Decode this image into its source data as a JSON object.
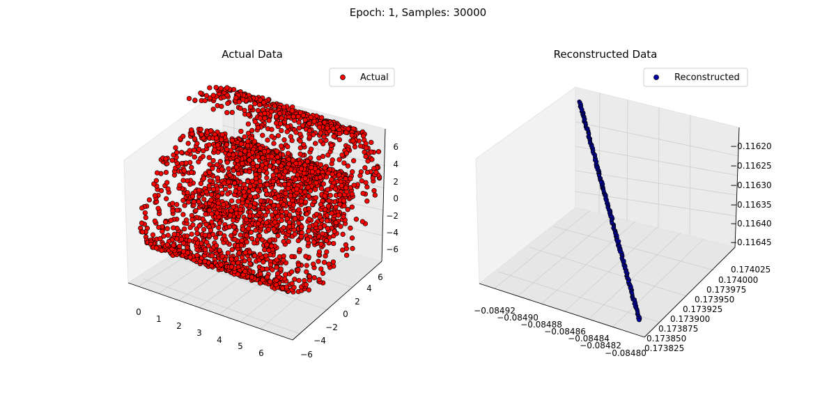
{
  "figure": {
    "suptitle": "Epoch: 1, Samples: 30000"
  },
  "chart_data": [
    {
      "type": "scatter",
      "title": "Actual Data",
      "legend": {
        "label": "Actual",
        "placement": "upper-right"
      },
      "marker_color": "#ff0000",
      "marker_edge": "#000000",
      "x_ticks": [
        "0",
        "1",
        "2",
        "3",
        "4",
        "5",
        "6"
      ],
      "y_ticks": [
        "6",
        "4",
        "2",
        "0",
        "−2",
        "−4",
        "−6"
      ],
      "z_ticks": [
        "6",
        "4",
        "2",
        "0",
        "−2",
        "−4",
        "−6"
      ],
      "xlim": [
        -0.5,
        7
      ],
      "ylim": [
        -7,
        7
      ],
      "zlim": [
        -7,
        7
      ],
      "description_points": "swiss-roll shaped cloud of ~30000 points"
    },
    {
      "type": "scatter",
      "title": "Reconstructed Data",
      "legend": {
        "label": "Reconstructed",
        "placement": "upper-right"
      },
      "marker_color": "#0000aa",
      "marker_edge": "#000000",
      "x_ticks": [
        "−0.08492",
        "−0.08490",
        "−0.08488",
        "−0.08486",
        "−0.08484",
        "−0.08482",
        "−0.08480"
      ],
      "y_ticks": [
        "0.174025",
        "0.174000",
        "0.173975",
        "0.173950",
        "0.173925",
        "0.173900",
        "0.173875",
        "0.173850",
        "0.173825"
      ],
      "z_ticks": [
        "−0.11620",
        "−0.11625",
        "−0.11630",
        "−0.11635",
        "−0.11640",
        "−0.11645"
      ],
      "line_start": {
        "x": -0.08492,
        "y": 0.174025,
        "z": -0.11618
      },
      "line_end": {
        "x": -0.0848,
        "y": 0.173825,
        "z": -0.11648
      }
    }
  ]
}
